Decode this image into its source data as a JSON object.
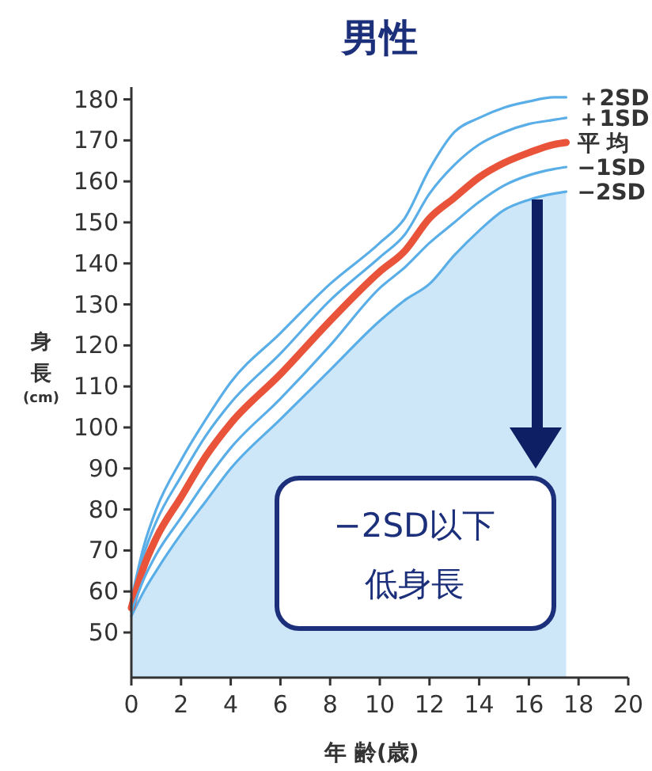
{
  "chart_data": {
    "type": "line",
    "title": "男性",
    "xlabel": "年 齢(歳)",
    "ylabel": "身長(cm)",
    "x": [
      0,
      0.5,
      1,
      2,
      3,
      4,
      6,
      8,
      10,
      11,
      12,
      13,
      14,
      15,
      16,
      17,
      17.5
    ],
    "xlim": [
      0,
      20
    ],
    "xticks": [
      0,
      2,
      4,
      6,
      8,
      10,
      12,
      14,
      16,
      18,
      20
    ],
    "ylim": [
      39,
      183
    ],
    "yticks": [
      50,
      60,
      70,
      80,
      90,
      100,
      110,
      120,
      130,
      140,
      150,
      160,
      170,
      180
    ],
    "grid": false,
    "legend": false,
    "marker": "none",
    "line_style": "solid",
    "series": [
      {
        "name": "＋2SD",
        "color": "#5aaee8",
        "values": [
          58,
          71,
          80,
          92,
          102,
          111,
          123,
          135,
          145,
          151,
          163,
          172,
          175.5,
          178,
          179.5,
          180.5,
          180.5
        ]
      },
      {
        "name": "＋1SD",
        "color": "#5aaee8",
        "values": [
          57,
          69,
          77,
          88,
          98,
          106,
          118,
          131,
          141.5,
          147,
          157,
          164,
          169,
          172,
          174,
          175,
          175.5
        ]
      },
      {
        "name": "平 均",
        "color": "#e8533a",
        "values": [
          56,
          66,
          73,
          83,
          93,
          101,
          113,
          126,
          138,
          143,
          151,
          156,
          161,
          164.5,
          167,
          169,
          169.5
        ]
      },
      {
        "name": "−1SD",
        "color": "#5aaee8",
        "values": [
          55,
          63,
          69,
          78,
          87,
          95,
          107,
          120,
          134,
          139,
          145,
          150,
          155,
          159,
          161.5,
          163,
          163.5
        ]
      },
      {
        "name": "−2SD",
        "type": "area",
        "color": "#5aaee8",
        "values": [
          54,
          60,
          65,
          74,
          82,
          90,
          102,
          114,
          126,
          131,
          135,
          142,
          148,
          153,
          155.5,
          157,
          157.5
        ]
      }
    ],
    "annotations": [
      "−2SD以下",
      "低身長"
    ]
  }
}
